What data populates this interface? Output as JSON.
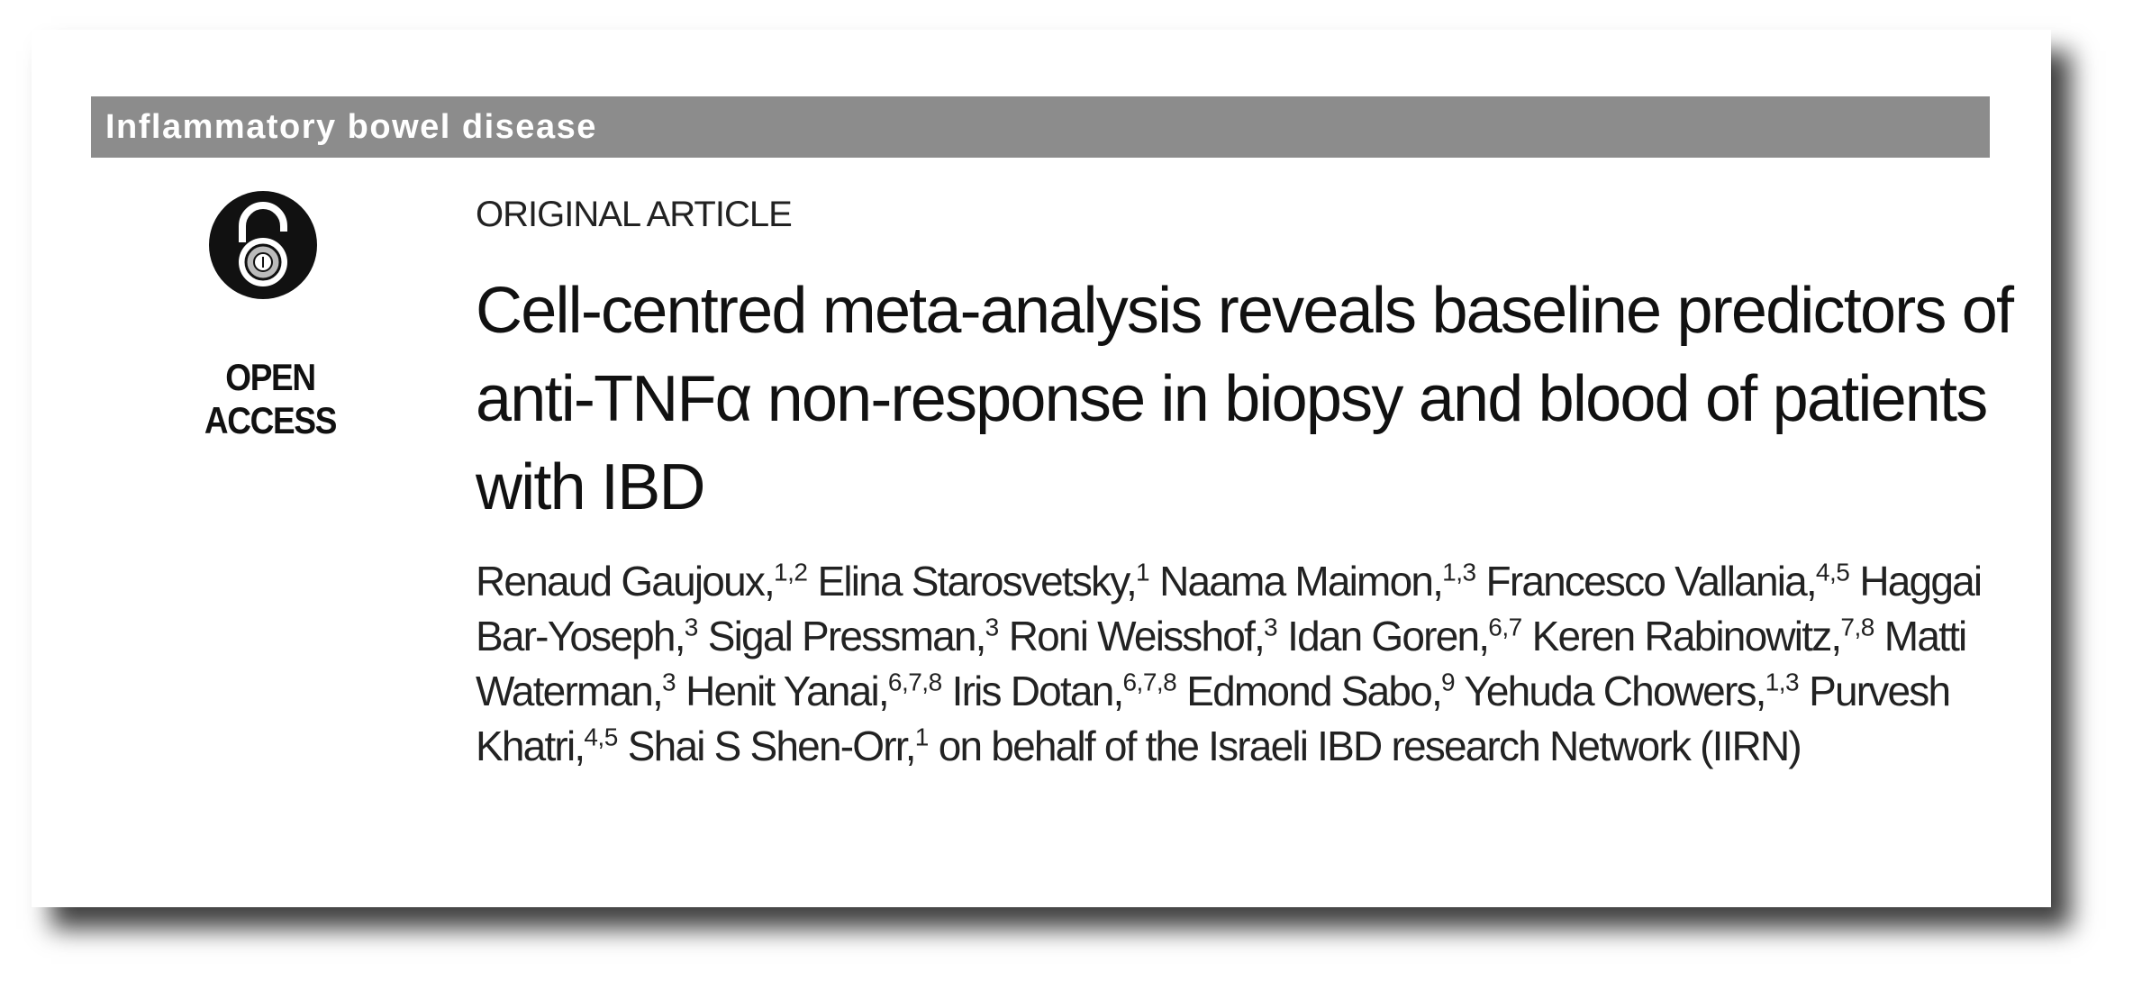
{
  "header": {
    "section": "Inflammatory bowel disease",
    "badge": "OPEN ACCESS"
  },
  "article": {
    "type": "ORIGINAL ARTICLE",
    "title": "Cell-centred meta-analysis reveals baseline predictors of anti-TNFα non-response in biopsy and blood of patients with IBD",
    "authors": [
      {
        "name": "Renaud Gaujoux,",
        "affiliations": "1,2"
      },
      {
        "name": "Elina Starosvetsky,",
        "affiliations": "1"
      },
      {
        "name": "Naama Maimon,",
        "affiliations": "1,3"
      },
      {
        "name": "Francesco Vallania,",
        "affiliations": "4,5"
      },
      {
        "name": "Haggai Bar-Yoseph,",
        "affiliations": "3"
      },
      {
        "name": "Sigal Pressman,",
        "affiliations": "3"
      },
      {
        "name": "Roni Weisshof,",
        "affiliations": "3"
      },
      {
        "name": "Idan Goren,",
        "affiliations": "6,7"
      },
      {
        "name": "Keren Rabinowitz,",
        "affiliations": "7,8"
      },
      {
        "name": "Matti Waterman,",
        "affiliations": "3"
      },
      {
        "name": "Henit Yanai,",
        "affiliations": "6,7,8"
      },
      {
        "name": "Iris Dotan,",
        "affiliations": "6,7,8"
      },
      {
        "name": "Edmond Sabo,",
        "affiliations": "9"
      },
      {
        "name": "Yehuda Chowers,",
        "affiliations": "1,3"
      },
      {
        "name": "Purvesh Khatri,",
        "affiliations": "4,5"
      },
      {
        "name": "Shai S Shen-Orr,",
        "affiliations": "1"
      }
    ],
    "collaboration": "on behalf of the Israeli IBD research Network (IIRN)"
  }
}
